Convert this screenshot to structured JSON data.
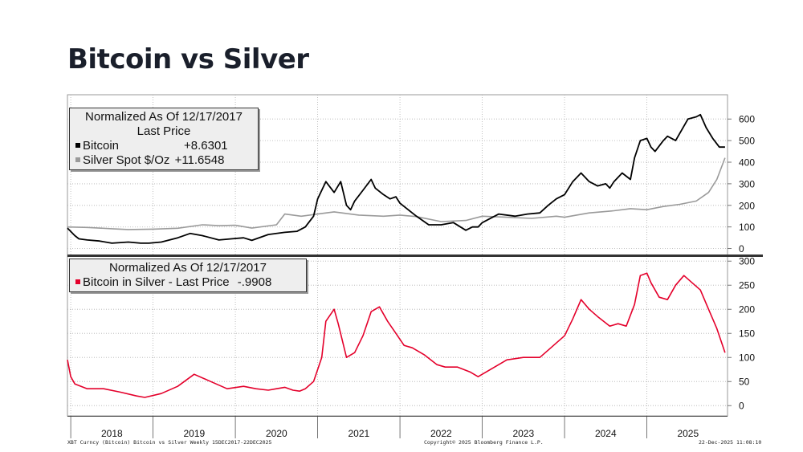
{
  "page_title": "Bitcoin vs Silver",
  "colors": {
    "bitcoin": "#000000",
    "silver": "#9a9a9a",
    "ratio": "#e4002b",
    "grid": "#b0b0b0"
  },
  "legend_top": {
    "title": "Normalized As Of 12/17/2017",
    "subtitle": "Last Price",
    "items": [
      {
        "label": "Bitcoin",
        "value": "+8.6301",
        "color": "#000000"
      },
      {
        "label": "Silver Spot $/Oz",
        "value": "+11.6548",
        "color": "#9a9a9a"
      }
    ]
  },
  "legend_bottom": {
    "title": "Normalized As Of 12/17/2017",
    "items": [
      {
        "label": "Bitcoin in Silver - Last Price",
        "value": "-.9908",
        "color": "#e4002b"
      }
    ]
  },
  "footer": {
    "left": "XBT Curncy (Bitcoin) Bitcoin vs Silver Weekly 15DEC2017-22DEC2025",
    "center": "Copyright© 2025 Bloomberg Finance L.P.",
    "right": "22-Dec-2025 11:08:10"
  },
  "chart_data": [
    {
      "type": "line",
      "title": "Normalized As Of 12/17/2017 Last Price",
      "x_range": [
        2017.96,
        2025.98
      ],
      "ylim": [
        -20,
        690
      ],
      "yticks": [
        0,
        100,
        200,
        300,
        400,
        500,
        600
      ],
      "xticks": [
        "2018",
        "2019",
        "2020",
        "2021",
        "2022",
        "2023",
        "2024",
        "2025"
      ],
      "series": [
        {
          "name": "Bitcoin",
          "last": "+8.6301",
          "x": [
            2017.96,
            2018.05,
            2018.1,
            2018.2,
            2018.35,
            2018.5,
            2018.7,
            2018.85,
            2018.95,
            2019.1,
            2019.3,
            2019.45,
            2019.6,
            2019.8,
            2019.95,
            2020.1,
            2020.2,
            2020.4,
            2020.6,
            2020.75,
            2020.85,
            2020.95,
            2021.0,
            2021.1,
            2021.2,
            2021.28,
            2021.35,
            2021.4,
            2021.45,
            2021.55,
            2021.65,
            2021.7,
            2021.8,
            2021.88,
            2021.95,
            2022.0,
            2022.1,
            2022.2,
            2022.35,
            2022.5,
            2022.65,
            2022.8,
            2022.88,
            2022.95,
            2023.0,
            2023.2,
            2023.4,
            2023.55,
            2023.7,
            2023.8,
            2023.9,
            2023.95,
            2024.0,
            2024.1,
            2024.2,
            2024.3,
            2024.4,
            2024.5,
            2024.55,
            2024.6,
            2024.7,
            2024.8,
            2024.85,
            2024.92,
            2025.0,
            2025.05,
            2025.1,
            2025.2,
            2025.25,
            2025.35,
            2025.5,
            2025.6,
            2025.65,
            2025.72,
            2025.8,
            2025.88,
            2025.95
          ],
          "values": [
            95,
            60,
            45,
            40,
            35,
            25,
            30,
            25,
            25,
            30,
            50,
            70,
            60,
            40,
            45,
            50,
            38,
            65,
            75,
            80,
            100,
            150,
            230,
            310,
            260,
            310,
            200,
            180,
            220,
            270,
            320,
            280,
            250,
            230,
            240,
            210,
            180,
            150,
            110,
            110,
            120,
            85,
            100,
            100,
            120,
            160,
            150,
            160,
            165,
            200,
            230,
            240,
            250,
            310,
            350,
            310,
            290,
            300,
            280,
            310,
            350,
            320,
            420,
            500,
            510,
            470,
            450,
            500,
            520,
            500,
            600,
            610,
            620,
            560,
            510,
            470,
            470
          ]
        },
        {
          "name": "Silver Spot $/Oz",
          "last": "+11.6548",
          "x": [
            2017.96,
            2018.2,
            2018.5,
            2018.7,
            2019.0,
            2019.3,
            2019.6,
            2019.8,
            2020.0,
            2020.2,
            2020.5,
            2020.6,
            2020.8,
            2021.0,
            2021.2,
            2021.5,
            2021.8,
            2022.0,
            2022.2,
            2022.5,
            2022.8,
            2023.0,
            2023.3,
            2023.6,
            2023.9,
            2024.0,
            2024.3,
            2024.6,
            2024.8,
            2025.0,
            2025.2,
            2025.4,
            2025.6,
            2025.75,
            2025.85,
            2025.95
          ],
          "values": [
            100,
            98,
            92,
            88,
            90,
            94,
            110,
            106,
            108,
            95,
            110,
            160,
            150,
            160,
            170,
            155,
            150,
            155,
            148,
            125,
            130,
            150,
            145,
            140,
            150,
            145,
            165,
            175,
            185,
            180,
            195,
            205,
            220,
            260,
            320,
            420
          ]
        }
      ]
    },
    {
      "type": "line",
      "title": "Normalized As Of 12/17/2017",
      "x_range": [
        2017.96,
        2025.98
      ],
      "ylim": [
        -18,
        307
      ],
      "yticks": [
        0,
        50,
        100,
        150,
        200,
        250,
        300
      ],
      "xticks": [
        "2018",
        "2019",
        "2020",
        "2021",
        "2022",
        "2023",
        "2024",
        "2025"
      ],
      "series": [
        {
          "name": "Bitcoin in Silver - Last Price",
          "last": "-.9908",
          "x": [
            2017.96,
            2018.0,
            2018.05,
            2018.2,
            2018.4,
            2018.6,
            2018.8,
            2018.9,
            2019.1,
            2019.3,
            2019.5,
            2019.7,
            2019.9,
            2020.1,
            2020.25,
            2020.4,
            2020.5,
            2020.6,
            2020.7,
            2020.78,
            2020.85,
            2020.95,
            2021.05,
            2021.1,
            2021.2,
            2021.25,
            2021.35,
            2021.45,
            2021.55,
            2021.65,
            2021.75,
            2021.85,
            2021.95,
            2022.05,
            2022.15,
            2022.3,
            2022.45,
            2022.55,
            2022.7,
            2022.85,
            2022.95,
            2023.1,
            2023.3,
            2023.5,
            2023.7,
            2023.8,
            2023.9,
            2024.0,
            2024.1,
            2024.2,
            2024.3,
            2024.4,
            2024.55,
            2024.65,
            2024.75,
            2024.85,
            2024.92,
            2025.0,
            2025.05,
            2025.15,
            2025.25,
            2025.35,
            2025.45,
            2025.55,
            2025.65,
            2025.75,
            2025.85,
            2025.95
          ],
          "values": [
            95,
            60,
            45,
            35,
            35,
            28,
            20,
            17,
            25,
            40,
            65,
            50,
            35,
            40,
            35,
            32,
            35,
            38,
            32,
            30,
            35,
            50,
            100,
            175,
            200,
            170,
            100,
            110,
            145,
            195,
            205,
            175,
            150,
            125,
            120,
            105,
            85,
            80,
            80,
            70,
            60,
            75,
            95,
            100,
            100,
            115,
            130,
            145,
            180,
            220,
            200,
            185,
            165,
            170,
            165,
            210,
            270,
            275,
            255,
            225,
            220,
            250,
            270,
            255,
            240,
            200,
            160,
            110
          ]
        }
      ]
    }
  ]
}
